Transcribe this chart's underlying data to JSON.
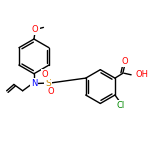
{
  "background_color": "#ffffff",
  "bond_color": "#000000",
  "bond_width": 1.0,
  "atom_colors": {
    "O": "#ff0000",
    "N": "#0000ff",
    "S": "#cc8800",
    "Cl": "#008800"
  },
  "figsize": [
    1.52,
    1.52
  ],
  "dpi": 100
}
